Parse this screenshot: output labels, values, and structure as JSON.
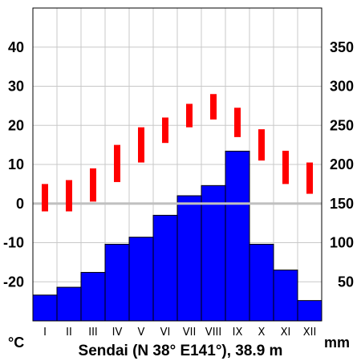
{
  "chart_data": {
    "type": "climate-diagram",
    "title": "Sendai (N 38° E141°), 38.9 m",
    "left_unit": "°C",
    "right_unit": "mm",
    "months": [
      "I",
      "II",
      "III",
      "IV",
      "V",
      "VI",
      "VII",
      "VIII",
      "IX",
      "X",
      "XI",
      "XII"
    ],
    "temperature_axis": {
      "range": [
        -30,
        50
      ],
      "ticks": [
        -20,
        -10,
        0,
        10,
        20,
        30,
        40
      ]
    },
    "precipitation_axis": {
      "range": [
        0,
        400
      ],
      "ticks": [
        50,
        100,
        150,
        200,
        250,
        300,
        350
      ]
    },
    "series": [
      {
        "type": "bar",
        "axis": "right",
        "values": [
          33,
          43,
          62,
          98,
          107,
          135,
          160,
          173,
          217,
          98,
          65,
          26
        ]
      },
      {
        "type": "range",
        "axis": "left",
        "low": [
          -2,
          -2,
          0.5,
          5.5,
          10.5,
          15.5,
          19.5,
          21.5,
          17,
          11,
          5,
          2.5
        ],
        "high": [
          5,
          6,
          9,
          15,
          19.5,
          22,
          25.5,
          28,
          24.5,
          19,
          13.5,
          10.5
        ]
      }
    ],
    "grid": true,
    "colors": {
      "bars": "#0000ff",
      "temperature": "#ff0000",
      "zero_line": "#c0c0c0",
      "grid": "#c8c8c8"
    }
  }
}
